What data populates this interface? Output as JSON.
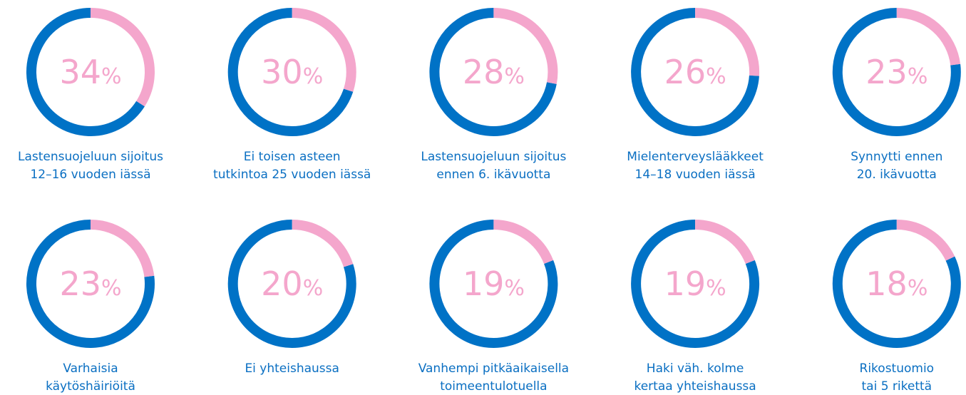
{
  "chart_data": [
    {
      "type": "donut",
      "value": 34,
      "unit": "%",
      "label": [
        "Lastensuojeluun sijoitus",
        "12–16 vuoden iässä"
      ],
      "color": "#f4a6cc",
      "rest_color": "#0072c6"
    },
    {
      "type": "donut",
      "value": 30,
      "unit": "%",
      "label": [
        "Ei toisen asteen",
        "tutkintoa 25 vuoden iässä"
      ],
      "color": "#f4a6cc",
      "rest_color": "#0072c6"
    },
    {
      "type": "donut",
      "value": 28,
      "unit": "%",
      "label": [
        "Lastensuojeluun sijoitus",
        "ennen 6. ikävuotta"
      ],
      "color": "#f4a6cc",
      "rest_color": "#0072c6"
    },
    {
      "type": "donut",
      "value": 26,
      "unit": "%",
      "label": [
        "Mielenterveyslääkkeet",
        "14–18 vuoden iässä"
      ],
      "color": "#f4a6cc",
      "rest_color": "#0072c6"
    },
    {
      "type": "donut",
      "value": 23,
      "unit": "%",
      "label": [
        "Synnytti ennen",
        "20. ikävuotta"
      ],
      "color": "#f4a6cc",
      "rest_color": "#0072c6"
    },
    {
      "type": "donut",
      "value": 23,
      "unit": "%",
      "label": [
        "Varhaisia",
        "käytöshäiriöitä"
      ],
      "color": "#f4a6cc",
      "rest_color": "#0072c6"
    },
    {
      "type": "donut",
      "value": 20,
      "unit": "%",
      "label": [
        "Ei yhteishaussa"
      ],
      "color": "#f4a6cc",
      "rest_color": "#0072c6"
    },
    {
      "type": "donut",
      "value": 19,
      "unit": "%",
      "label": [
        "Vanhempi pitkäaikaisella",
        "toimeentulotuella"
      ],
      "color": "#f4a6cc",
      "rest_color": "#0072c6"
    },
    {
      "type": "donut",
      "value": 19,
      "unit": "%",
      "label": [
        "Haki väh. kolme",
        "kertaa yhteishaussa"
      ],
      "color": "#f4a6cc",
      "rest_color": "#0072c6"
    },
    {
      "type": "donut",
      "value": 18,
      "unit": "%",
      "label": [
        "Rikostuomio",
        "tai 5 rikettä"
      ],
      "color": "#f4a6cc",
      "rest_color": "#0072c6"
    }
  ]
}
